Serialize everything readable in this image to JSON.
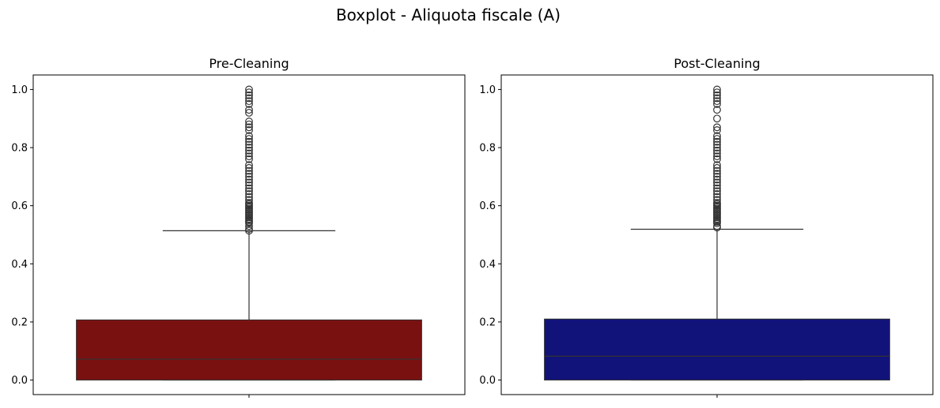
{
  "suptitle": "Boxplot - Aliquota fiscale (A)",
  "chart_data": [
    {
      "type": "box",
      "title": "Pre-Cleaning",
      "xlabel": "",
      "ylabel": "",
      "ylim": [
        -0.05,
        1.05
      ],
      "yticks": [
        0.0,
        0.2,
        0.4,
        0.6,
        0.8,
        1.0
      ],
      "ytick_labels": [
        "0.0",
        "0.2",
        "0.4",
        "0.6",
        "0.8",
        "1.0"
      ],
      "box_color": "#7a1111",
      "line_color": "#333333",
      "stats": {
        "min": 0.0,
        "q1": 0.0,
        "median": 0.072,
        "q3": 0.207,
        "whisker_high": 0.514
      },
      "outliers": [
        0.514,
        0.52,
        0.53,
        0.54,
        0.545,
        0.55,
        0.555,
        0.56,
        0.565,
        0.57,
        0.575,
        0.58,
        0.585,
        0.59,
        0.595,
        0.6,
        0.605,
        0.61,
        0.62,
        0.63,
        0.64,
        0.65,
        0.66,
        0.67,
        0.68,
        0.69,
        0.7,
        0.71,
        0.72,
        0.73,
        0.74,
        0.76,
        0.77,
        0.78,
        0.79,
        0.8,
        0.81,
        0.82,
        0.83,
        0.84,
        0.86,
        0.87,
        0.88,
        0.89,
        0.92,
        0.93,
        0.95,
        0.96,
        0.97,
        0.98,
        0.99,
        1.0
      ]
    },
    {
      "type": "box",
      "title": "Post-Cleaning",
      "xlabel": "",
      "ylabel": "",
      "ylim": [
        -0.05,
        1.05
      ],
      "yticks": [
        0.0,
        0.2,
        0.4,
        0.6,
        0.8,
        1.0
      ],
      "ytick_labels": [
        "0.0",
        "0.2",
        "0.4",
        "0.6",
        "0.8",
        "1.0"
      ],
      "box_color": "#11137a",
      "line_color": "#333333",
      "stats": {
        "min": 0.0,
        "q1": 0.0,
        "median": 0.082,
        "q3": 0.21,
        "whisker_high": 0.519
      },
      "outliers": [
        0.525,
        0.53,
        0.54,
        0.545,
        0.55,
        0.555,
        0.56,
        0.565,
        0.57,
        0.575,
        0.58,
        0.585,
        0.59,
        0.595,
        0.6,
        0.605,
        0.61,
        0.62,
        0.63,
        0.64,
        0.65,
        0.66,
        0.67,
        0.68,
        0.69,
        0.7,
        0.71,
        0.72,
        0.73,
        0.74,
        0.76,
        0.77,
        0.78,
        0.79,
        0.8,
        0.81,
        0.82,
        0.83,
        0.84,
        0.86,
        0.87,
        0.9,
        0.93,
        0.95,
        0.96,
        0.97,
        0.98,
        0.99,
        1.0
      ]
    }
  ]
}
